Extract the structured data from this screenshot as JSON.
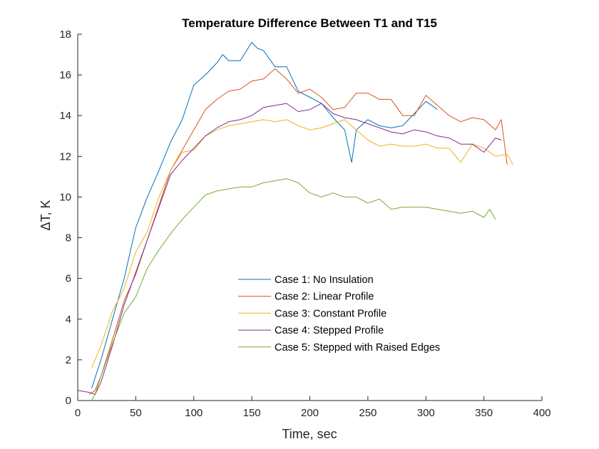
{
  "chart_data": {
    "type": "line",
    "title": "Temperature Difference Between T1 and T15",
    "xlabel": "Time, sec",
    "ylabel": "ΔT, K",
    "xlim": [
      0,
      400
    ],
    "ylim": [
      0,
      18
    ],
    "xticks": [
      "0",
      "50",
      "100",
      "150",
      "200",
      "250",
      "300",
      "350",
      "400"
    ],
    "yticks": [
      "0",
      "2",
      "4",
      "6",
      "8",
      "10",
      "12",
      "14",
      "16",
      "18"
    ],
    "grid": false,
    "legend_position": "lower-center",
    "series": [
      {
        "name": "Case 1: No Insulation",
        "color": "#0072BD",
        "x": [
          12,
          20,
          30,
          40,
          50,
          60,
          70,
          80,
          90,
          100,
          110,
          120,
          125,
          130,
          140,
          150,
          155,
          160,
          170,
          180,
          190,
          200,
          210,
          220,
          230,
          236,
          240,
          250,
          260,
          270,
          280,
          290,
          300,
          310
        ],
        "y": [
          0.6,
          2.0,
          4.0,
          6.0,
          8.5,
          10.0,
          11.3,
          12.7,
          13.8,
          15.5,
          16.0,
          16.6,
          17.0,
          16.7,
          16.7,
          17.6,
          17.3,
          17.2,
          16.4,
          16.4,
          15.2,
          14.9,
          14.6,
          13.9,
          13.3,
          11.7,
          13.3,
          13.8,
          13.5,
          13.4,
          13.5,
          14.1,
          14.7,
          14.3
        ]
      },
      {
        "name": "Case 2: Linear Profile",
        "color": "#D95319",
        "x": [
          10,
          15,
          20,
          30,
          40,
          50,
          60,
          70,
          80,
          90,
          100,
          110,
          120,
          130,
          140,
          150,
          160,
          170,
          180,
          190,
          200,
          210,
          220,
          230,
          240,
          250,
          260,
          270,
          280,
          290,
          300,
          310,
          320,
          330,
          340,
          350,
          360,
          365,
          370
        ],
        "y": [
          0.3,
          0.5,
          1.2,
          3.0,
          4.9,
          6.2,
          7.9,
          9.6,
          11.3,
          12.3,
          13.3,
          14.3,
          14.8,
          15.2,
          15.3,
          15.7,
          15.8,
          16.3,
          15.8,
          15.1,
          15.3,
          14.9,
          14.3,
          14.4,
          15.1,
          15.1,
          14.8,
          14.8,
          14.0,
          14.0,
          15.0,
          14.5,
          14.0,
          13.7,
          13.9,
          13.8,
          13.3,
          13.8,
          11.6
        ]
      },
      {
        "name": "Case 3: Constant Profile",
        "color": "#EDB120",
        "x": [
          12,
          20,
          30,
          40,
          50,
          60,
          70,
          80,
          90,
          100,
          110,
          120,
          130,
          140,
          150,
          160,
          170,
          180,
          190,
          200,
          210,
          220,
          230,
          240,
          250,
          260,
          270,
          280,
          290,
          300,
          310,
          320,
          330,
          340,
          350,
          360,
          370,
          375
        ],
        "y": [
          1.6,
          2.7,
          4.4,
          5.5,
          7.3,
          8.3,
          10.0,
          11.3,
          12.2,
          12.3,
          13.0,
          13.3,
          13.5,
          13.6,
          13.7,
          13.8,
          13.7,
          13.8,
          13.5,
          13.3,
          13.4,
          13.6,
          13.8,
          13.3,
          12.8,
          12.5,
          12.6,
          12.5,
          12.5,
          12.6,
          12.4,
          12.4,
          11.7,
          12.6,
          12.4,
          12.0,
          12.1,
          11.6
        ]
      },
      {
        "name": "Case 4: Stepped Profile",
        "color": "#7E2F8E",
        "x": [
          0,
          10,
          15,
          20,
          30,
          40,
          50,
          60,
          70,
          80,
          90,
          100,
          110,
          120,
          130,
          140,
          150,
          160,
          170,
          180,
          190,
          200,
          210,
          220,
          230,
          240,
          250,
          260,
          270,
          280,
          290,
          300,
          310,
          320,
          330,
          340,
          350,
          360,
          365
        ],
        "y": [
          0.5,
          0.4,
          0.3,
          0.9,
          2.7,
          4.7,
          6.3,
          7.9,
          9.5,
          11.1,
          11.8,
          12.4,
          13.0,
          13.4,
          13.7,
          13.8,
          14.0,
          14.4,
          14.5,
          14.6,
          14.2,
          14.3,
          14.6,
          14.1,
          13.9,
          13.8,
          13.6,
          13.4,
          13.2,
          13.1,
          13.3,
          13.2,
          13.0,
          12.9,
          12.6,
          12.6,
          12.2,
          12.9,
          12.8
        ]
      },
      {
        "name": "Case 5: Stepped with Raised Edges",
        "color": "#77AC30",
        "x": [
          12,
          15,
          20,
          30,
          40,
          50,
          60,
          70,
          80,
          90,
          100,
          110,
          120,
          130,
          140,
          150,
          160,
          170,
          180,
          190,
          200,
          210,
          220,
          230,
          240,
          250,
          260,
          270,
          280,
          290,
          300,
          310,
          320,
          330,
          340,
          350,
          355,
          360
        ],
        "y": [
          0.0,
          0.3,
          1.2,
          2.8,
          4.3,
          5.1,
          6.5,
          7.4,
          8.2,
          8.9,
          9.5,
          10.1,
          10.3,
          10.4,
          10.5,
          10.5,
          10.7,
          10.8,
          10.9,
          10.7,
          10.2,
          10.0,
          10.2,
          10.0,
          10.0,
          9.7,
          9.9,
          9.4,
          9.5,
          9.5,
          9.5,
          9.4,
          9.3,
          9.2,
          9.3,
          9.0,
          9.4,
          8.9
        ]
      }
    ]
  }
}
